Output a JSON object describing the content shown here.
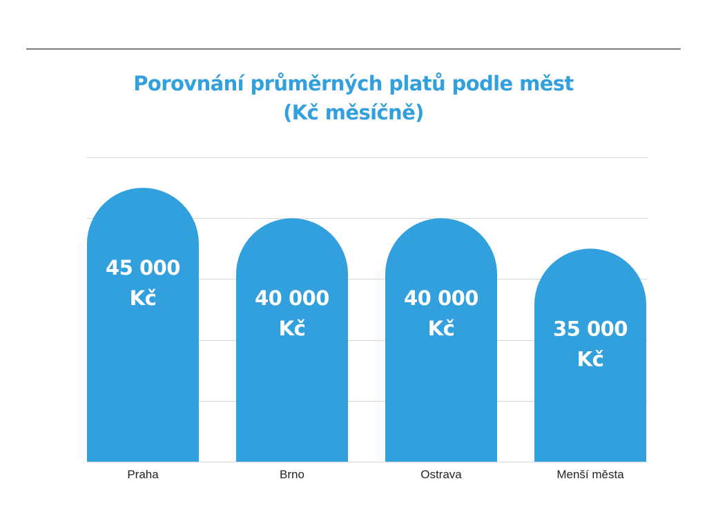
{
  "chart_data": {
    "type": "bar",
    "title_lines": [
      "Porovnání průměrných platů podle měst",
      "(Kč měsíčně)"
    ],
    "categories": [
      "Praha",
      "Brno",
      "Ostrava",
      "Menší města"
    ],
    "values": [
      45000,
      40000,
      40000,
      35000
    ],
    "value_labels": [
      [
        "45 000",
        "Kč"
      ],
      [
        "40 000",
        "Kč"
      ],
      [
        "40 000",
        "Kč"
      ],
      [
        "35 000",
        "Kč"
      ]
    ],
    "xlabel": "",
    "ylabel": "",
    "ylim": [
      0,
      50000
    ],
    "grid": true,
    "legend": "none",
    "bar_shape": "rounded-top",
    "colors": {
      "bar": "#33a0de",
      "title": "#33a0de",
      "bar_label": "#ffffff",
      "axis_label": "#222222",
      "gridline": "#d9d9d9",
      "top_rule": "#7a7a7a"
    }
  }
}
